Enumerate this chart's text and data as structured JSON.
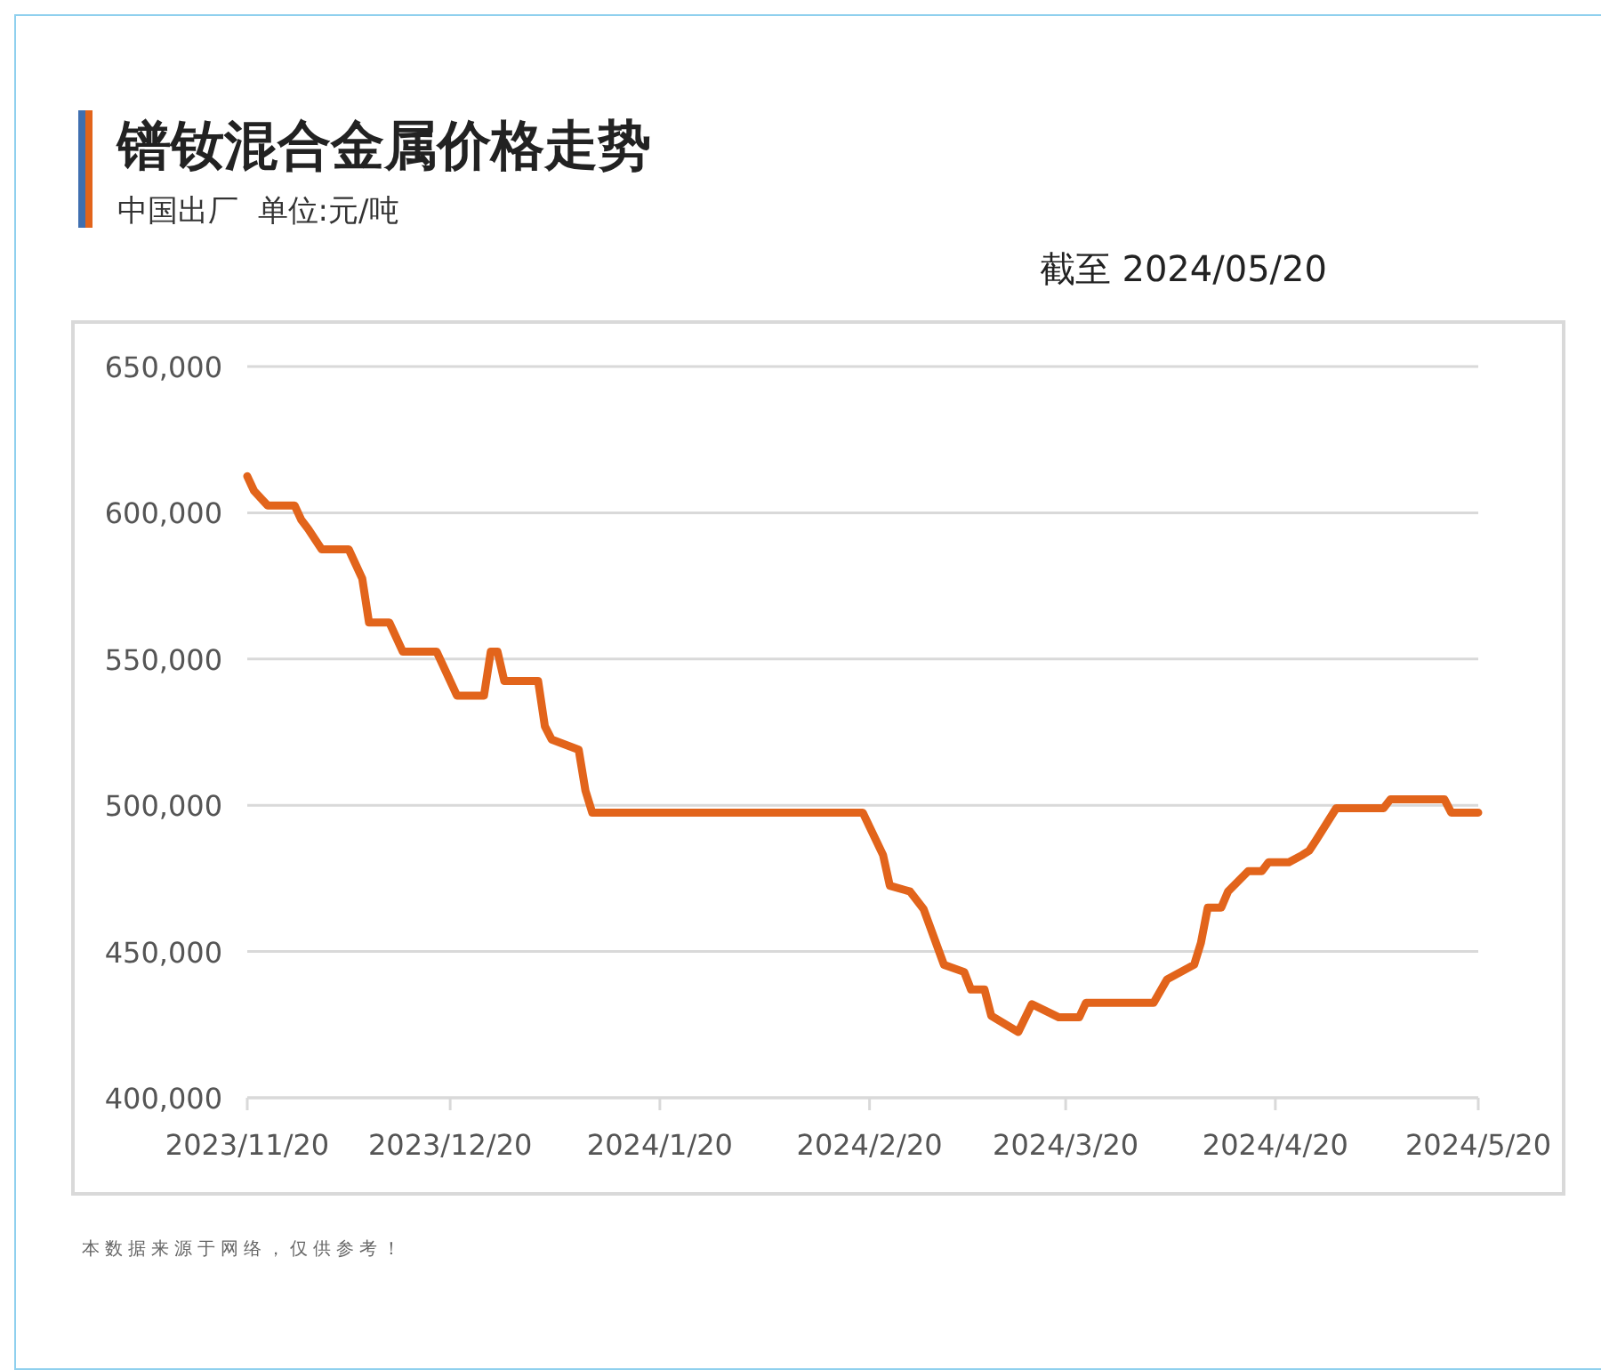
{
  "chart_data": {
    "type": "line",
    "title": "镨钕混合金属价格走势",
    "subtitle": "中国出厂  单位:元/吨",
    "annotations": [
      "截至 2024/05/20",
      "本数据来源于网络，仅供参考！"
    ],
    "x": [
      "2023-11-20",
      "2023-11-21",
      "2023-11-23",
      "2023-11-27",
      "2023-11-28",
      "2023-11-29",
      "2023-12-01",
      "2023-12-05",
      "2023-12-07",
      "2023-12-08",
      "2023-12-11",
      "2023-12-13",
      "2023-12-18",
      "2023-12-21",
      "2023-12-25",
      "2023-12-26",
      "2023-12-27",
      "2023-12-28",
      "2024-01-02",
      "2024-01-03",
      "2024-01-04",
      "2024-01-08",
      "2024-01-09",
      "2024-01-10",
      "2024-02-19",
      "2024-02-22",
      "2024-02-23",
      "2024-02-26",
      "2024-02-28",
      "2024-03-02",
      "2024-03-05",
      "2024-03-06",
      "2024-03-08",
      "2024-03-09",
      "2024-03-13",
      "2024-03-15",
      "2024-03-19",
      "2024-03-22",
      "2024-03-23",
      "2024-04-02",
      "2024-04-04",
      "2024-04-08",
      "2024-04-09",
      "2024-04-10",
      "2024-04-12",
      "2024-04-13",
      "2024-04-16",
      "2024-04-18",
      "2024-04-19",
      "2024-04-22",
      "2024-04-24",
      "2024-04-25",
      "2024-04-26",
      "2024-04-29",
      "2024-05-06",
      "2024-05-07",
      "2024-05-15",
      "2024-05-16",
      "2024-05-20"
    ],
    "series": [
      {
        "color": "#e2641b",
        "values": [
          612500,
          607500,
          602500,
          602500,
          597500,
          594500,
          587500,
          587500,
          577500,
          562500,
          562500,
          552500,
          552500,
          537500,
          537500,
          552500,
          552500,
          542500,
          542500,
          527000,
          522500,
          519000,
          505000,
          497500,
          497500,
          483000,
          472500,
          470500,
          464500,
          445500,
          443000,
          437000,
          437000,
          428000,
          422500,
          432000,
          427500,
          427500,
          432500,
          432500,
          440500,
          445500,
          453000,
          465000,
          465000,
          470500,
          477500,
          477500,
          480500,
          480500,
          483000,
          484500,
          488000,
          499000,
          499000,
          502000,
          502000,
          497500,
          497500
        ]
      }
    ],
    "xlim": [
      "2023-11-20",
      "2024-05-20"
    ],
    "xticks": [
      {
        "value": "2023-11-20",
        "label": "2023/11/20"
      },
      {
        "value": "2023-12-20",
        "label": "2023/12/20"
      },
      {
        "value": "2024-01-20",
        "label": "2024/1/20"
      },
      {
        "value": "2024-02-20",
        "label": "2024/2/20"
      },
      {
        "value": "2024-03-20",
        "label": "2024/3/20"
      },
      {
        "value": "2024-04-20",
        "label": "2024/4/20"
      },
      {
        "value": "2024-05-20",
        "label": "2024/5/20"
      }
    ],
    "ylim": [
      400000,
      650000
    ],
    "yticks": [
      {
        "value": 400000,
        "label": "400,000"
      },
      {
        "value": 450000,
        "label": "450,000"
      },
      {
        "value": 500000,
        "label": "500,000"
      },
      {
        "value": 550000,
        "label": "550,000"
      },
      {
        "value": 600000,
        "label": "600,000"
      },
      {
        "value": 650000,
        "label": "650,000"
      }
    ],
    "grid": "y",
    "marker": "none",
    "line_style": "solid"
  }
}
